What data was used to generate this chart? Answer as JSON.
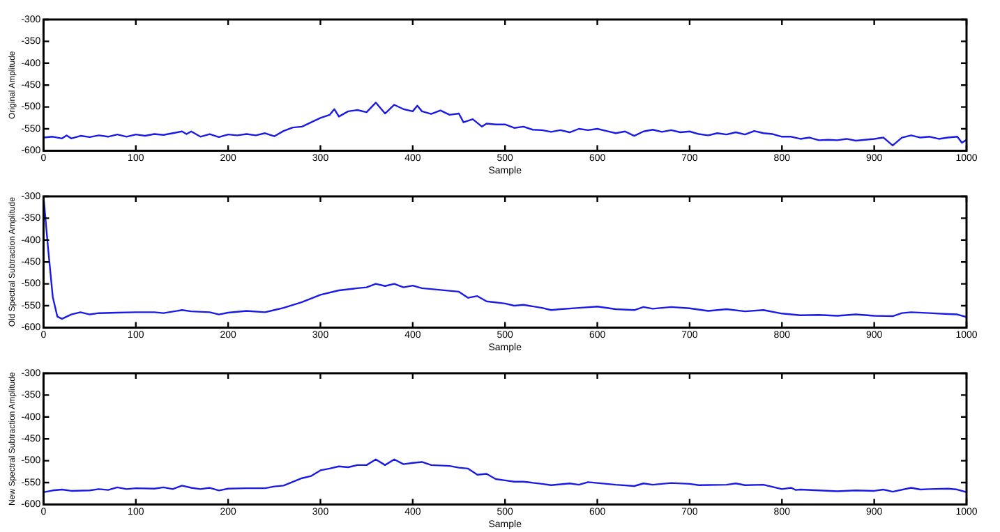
{
  "chart_data": [
    {
      "type": "line",
      "xlabel": "Sample",
      "ylabel": "Original Amplitude",
      "xlim": [
        0,
        1000
      ],
      "ylim": [
        -600,
        -300
      ],
      "xticks": [
        0,
        100,
        200,
        300,
        400,
        500,
        600,
        700,
        800,
        900,
        1000
      ],
      "yticks": [
        -600,
        -550,
        -500,
        -450,
        -400,
        -350,
        -300
      ],
      "grid": false,
      "legend": false,
      "marker": "none",
      "line_style": "solid",
      "series": [
        {
          "color": "#1a1ae6",
          "x": [
            0,
            10,
            20,
            25,
            30,
            40,
            50,
            60,
            70,
            80,
            90,
            100,
            110,
            120,
            130,
            140,
            150,
            155,
            160,
            170,
            180,
            190,
            200,
            210,
            220,
            230,
            240,
            250,
            260,
            270,
            280,
            290,
            300,
            310,
            315,
            320,
            330,
            340,
            350,
            360,
            370,
            380,
            390,
            400,
            405,
            410,
            420,
            430,
            440,
            450,
            455,
            465,
            475,
            480,
            490,
            500,
            510,
            520,
            530,
            540,
            550,
            560,
            570,
            580,
            590,
            600,
            610,
            620,
            630,
            640,
            650,
            660,
            670,
            680,
            690,
            700,
            710,
            720,
            730,
            740,
            750,
            760,
            770,
            780,
            790,
            800,
            810,
            820,
            830,
            840,
            850,
            860,
            870,
            880,
            890,
            900,
            910,
            920,
            930,
            940,
            950,
            960,
            970,
            980,
            990,
            995,
            1000
          ],
          "values": [
            -570,
            -568,
            -572,
            -565,
            -572,
            -566,
            -569,
            -565,
            -568,
            -563,
            -568,
            -563,
            -566,
            -562,
            -564,
            -560,
            -556,
            -562,
            -556,
            -568,
            -562,
            -569,
            -563,
            -565,
            -562,
            -565,
            -560,
            -567,
            -555,
            -547,
            -545,
            -535,
            -525,
            -518,
            -505,
            -522,
            -510,
            -507,
            -512,
            -490,
            -515,
            -495,
            -505,
            -510,
            -497,
            -510,
            -516,
            -508,
            -518,
            -515,
            -535,
            -528,
            -545,
            -538,
            -540,
            -540,
            -548,
            -545,
            -552,
            -553,
            -557,
            -553,
            -558,
            -550,
            -553,
            -550,
            -555,
            -560,
            -556,
            -566,
            -556,
            -552,
            -557,
            -553,
            -558,
            -556,
            -562,
            -565,
            -560,
            -563,
            -558,
            -563,
            -555,
            -560,
            -562,
            -568,
            -568,
            -573,
            -570,
            -576,
            -575,
            -576,
            -573,
            -577,
            -575,
            -573,
            -570,
            -588,
            -570,
            -565,
            -570,
            -568,
            -573,
            -570,
            -568,
            -582,
            -575
          ]
        }
      ]
    },
    {
      "type": "line",
      "xlabel": "Sample",
      "ylabel": "Old Spectral Subtraction Amplitude",
      "xlim": [
        0,
        1000
      ],
      "ylim": [
        -600,
        -300
      ],
      "xticks": [
        0,
        100,
        200,
        300,
        400,
        500,
        600,
        700,
        800,
        900,
        1000
      ],
      "yticks": [
        -600,
        -550,
        -500,
        -450,
        -400,
        -350,
        -300
      ],
      "grid": false,
      "legend": false,
      "marker": "none",
      "line_style": "solid",
      "series": [
        {
          "color": "#1a1ae6",
          "x": [
            0,
            5,
            10,
            15,
            20,
            30,
            40,
            50,
            60,
            80,
            100,
            120,
            130,
            150,
            160,
            180,
            190,
            200,
            220,
            240,
            250,
            260,
            280,
            300,
            320,
            340,
            350,
            360,
            370,
            380,
            390,
            400,
            410,
            420,
            440,
            450,
            460,
            470,
            480,
            500,
            510,
            520,
            540,
            550,
            560,
            580,
            600,
            620,
            640,
            650,
            660,
            680,
            700,
            720,
            740,
            760,
            780,
            800,
            820,
            840,
            860,
            880,
            900,
            920,
            930,
            940,
            960,
            980,
            990,
            1000
          ],
          "values": [
            -300,
            -420,
            -530,
            -575,
            -580,
            -570,
            -565,
            -570,
            -567,
            -566,
            -565,
            -565,
            -567,
            -560,
            -563,
            -565,
            -570,
            -566,
            -562,
            -565,
            -560,
            -555,
            -542,
            -525,
            -515,
            -510,
            -508,
            -500,
            -505,
            -500,
            -508,
            -504,
            -510,
            -512,
            -516,
            -518,
            -532,
            -528,
            -540,
            -545,
            -550,
            -548,
            -555,
            -560,
            -558,
            -555,
            -552,
            -558,
            -560,
            -553,
            -557,
            -553,
            -556,
            -562,
            -558,
            -563,
            -560,
            -568,
            -572,
            -571,
            -573,
            -570,
            -573,
            -574,
            -567,
            -565,
            -567,
            -569,
            -570,
            -576
          ]
        }
      ]
    },
    {
      "type": "line",
      "xlabel": "Sample",
      "ylabel": "New Spectral Subtraction Amplitude",
      "xlim": [
        0,
        1000
      ],
      "ylim": [
        -600,
        -300
      ],
      "xticks": [
        0,
        100,
        200,
        300,
        400,
        500,
        600,
        700,
        800,
        900,
        1000
      ],
      "yticks": [
        -600,
        -550,
        -500,
        -450,
        -400,
        -350,
        -300
      ],
      "grid": false,
      "legend": false,
      "marker": "none",
      "line_style": "solid",
      "series": [
        {
          "color": "#1a1ae6",
          "x": [
            0,
            10,
            20,
            30,
            50,
            60,
            70,
            80,
            90,
            100,
            120,
            130,
            140,
            150,
            160,
            170,
            180,
            190,
            200,
            220,
            240,
            250,
            260,
            280,
            290,
            300,
            310,
            320,
            330,
            340,
            350,
            360,
            370,
            380,
            390,
            400,
            410,
            420,
            440,
            450,
            460,
            470,
            480,
            490,
            500,
            510,
            520,
            540,
            550,
            570,
            580,
            590,
            600,
            620,
            640,
            650,
            660,
            680,
            700,
            710,
            740,
            750,
            760,
            780,
            800,
            810,
            815,
            820,
            840,
            860,
            880,
            900,
            910,
            920,
            940,
            950,
            960,
            980,
            990,
            1000
          ],
          "values": [
            -572,
            -568,
            -566,
            -569,
            -568,
            -565,
            -567,
            -561,
            -565,
            -563,
            -564,
            -561,
            -565,
            -557,
            -562,
            -565,
            -562,
            -568,
            -564,
            -563,
            -563,
            -559,
            -557,
            -540,
            -535,
            -522,
            -518,
            -513,
            -515,
            -510,
            -510,
            -497,
            -510,
            -497,
            -508,
            -505,
            -503,
            -510,
            -512,
            -516,
            -518,
            -532,
            -530,
            -542,
            -545,
            -548,
            -548,
            -553,
            -556,
            -552,
            -555,
            -549,
            -551,
            -555,
            -558,
            -552,
            -555,
            -551,
            -553,
            -556,
            -555,
            -552,
            -556,
            -555,
            -565,
            -562,
            -567,
            -566,
            -568,
            -570,
            -568,
            -569,
            -566,
            -571,
            -562,
            -566,
            -565,
            -564,
            -566,
            -572
          ]
        }
      ]
    }
  ]
}
